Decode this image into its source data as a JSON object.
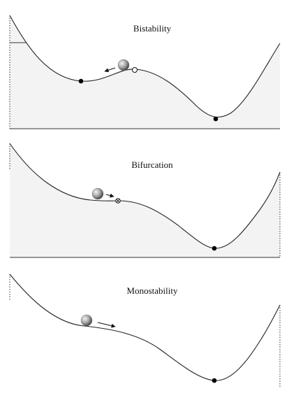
{
  "colors": {
    "curve": "#222222",
    "fill": "#f3f3f3",
    "baseline": "#333333",
    "stable_point": "#000000",
    "ball_light": "#f2f2f2",
    "ball_dark": "#555555"
  },
  "panels": [
    {
      "title": "Bistability",
      "stable_points": 2,
      "unstable_points": 1,
      "saddle_node_points": 0
    },
    {
      "title": "Bifurcation",
      "stable_points": 1,
      "unstable_points": 0,
      "saddle_node_points": 1
    },
    {
      "title": "Monostability",
      "stable_points": 1,
      "unstable_points": 0,
      "saddle_node_points": 0
    }
  ]
}
